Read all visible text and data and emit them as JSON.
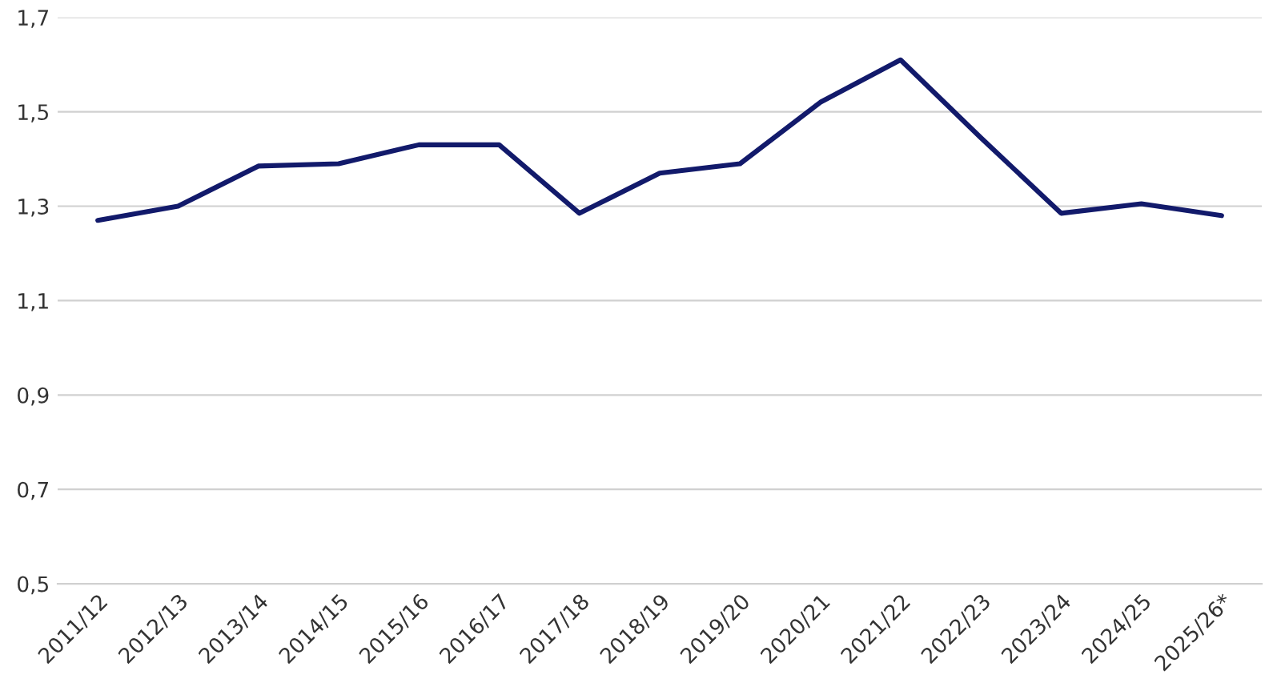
{
  "chart_data": {
    "type": "line",
    "categories": [
      "2011/12",
      "2012/13",
      "2013/14",
      "2014/15",
      "2015/16",
      "2016/17",
      "2017/18",
      "2018/19",
      "2019/20",
      "2020/21",
      "2021/22",
      "2022/23",
      "2023/24",
      "2024/25",
      "2025/26*"
    ],
    "series": [
      {
        "color": "#121a6b",
        "values": [
          1.27,
          1.3,
          1.385,
          1.39,
          1.43,
          1.43,
          1.285,
          1.37,
          1.39,
          1.52,
          1.61,
          1.445,
          1.285,
          1.305,
          1.28
        ]
      }
    ],
    "ylim": [
      0.5,
      1.7
    ],
    "yticks": [
      {
        "value": 0.5,
        "label": "0,5"
      },
      {
        "value": 0.7,
        "label": "0,7"
      },
      {
        "value": 0.9,
        "label": "0,9"
      },
      {
        "value": 1.1,
        "label": "1,1"
      },
      {
        "value": 1.3,
        "label": "1,3"
      },
      {
        "value": 1.5,
        "label": "1,5"
      },
      {
        "value": 1.7,
        "label": "1,7"
      }
    ],
    "grid": "y",
    "legend": false,
    "marker": "none",
    "line_style": "solid"
  }
}
